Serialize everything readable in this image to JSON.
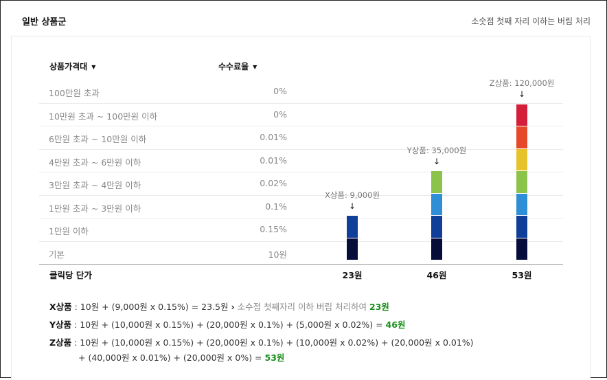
{
  "header": {
    "title": "일반 상품군",
    "note": "소숫점 첫째 자리 이하는 버림 처리"
  },
  "table": {
    "col_range_label": "상품가격대",
    "col_rate_label": "수수료율",
    "caret": "▼",
    "rows": [
      {
        "range": "100만원 초과",
        "rate": "0%"
      },
      {
        "range": "10만원 초과 ~ 100만원 이하",
        "rate": "0%"
      },
      {
        "range": "6만원 초과 ~ 10만원 이하",
        "rate": "0.01%"
      },
      {
        "range": "4만원 초과 ~ 6만원 이하",
        "rate": "0.01%"
      },
      {
        "range": "3만원 초과 ~ 4만원 이하",
        "rate": "0.02%"
      },
      {
        "range": "1만원 초과 ~ 3만원 이하",
        "rate": "0.1%"
      },
      {
        "range": "1만원 이하",
        "rate": "0.15%"
      },
      {
        "range": "기본",
        "rate": "10원"
      }
    ],
    "footer_label": "클릭당 단가"
  },
  "products": [
    {
      "label": "X상품: 9,000원",
      "price": "23원",
      "arrow": "↓",
      "segments": 2
    },
    {
      "label": "Y상품: 35,000원",
      "price": "46원",
      "arrow": "↓",
      "segments": 4
    },
    {
      "label": "Z상품: 120,000원",
      "price": "53원",
      "arrow": "↓",
      "segments": 7
    }
  ],
  "segment_colors": [
    "#060d3b",
    "#0f3f99",
    "#2e8fd6",
    "#8cc34a",
    "#e8c22a",
    "#e5492a",
    "#d41f3a"
  ],
  "formulas": {
    "x_name": "X상품",
    "x_text": " : 10원 + (9,000원 x 0.15%) = 23.5원 ",
    "x_sep": "›",
    "x_note": " 소수점 첫째자리 이하 버림 처리하여 ",
    "x_result": "23원",
    "y_name": "Y상품",
    "y_text": " : 10원 + (10,000원 x 0.15%) + (20,000원 x 0.1%) + (5,000원 x 0.02%) = ",
    "y_result": "46원",
    "z_name": "Z상품",
    "z_text": " : 10원 + (10,000원 x 0.15%) + (20,000원 x 0.1%) + (10,000원 x 0.02%) + (20,000원 x 0.01%)",
    "z_text2": "+ (40,000원 x 0.01%) + (20,000원 x 0%) = ",
    "z_result": "53원"
  }
}
